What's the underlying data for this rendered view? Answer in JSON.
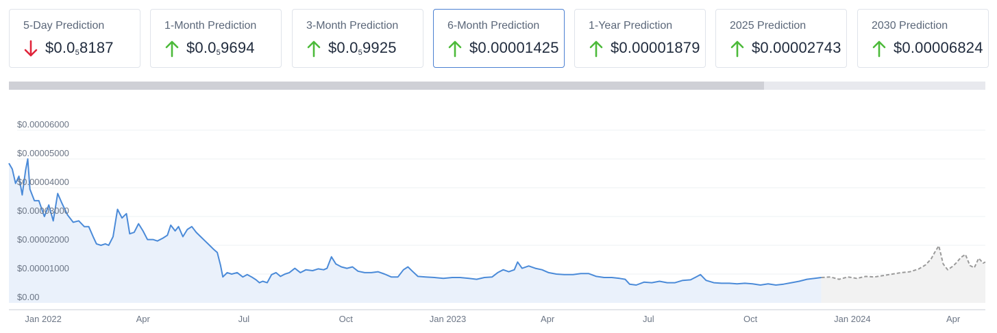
{
  "cards": [
    {
      "label": "5-Day Prediction",
      "prefix": "$0.0",
      "sub": "5",
      "suffix": "8187",
      "direction": "down"
    },
    {
      "label": "1-Month Prediction",
      "prefix": "$0.0",
      "sub": "5",
      "suffix": "9694",
      "direction": "up"
    },
    {
      "label": "3-Month Prediction",
      "prefix": "$0.0",
      "sub": "5",
      "suffix": "9925",
      "direction": "up"
    },
    {
      "label": "6-Month Prediction",
      "prefix": "$0.00001425",
      "sub": "",
      "suffix": "",
      "direction": "up",
      "active": true
    },
    {
      "label": "1-Year Prediction",
      "prefix": "$0.00001879",
      "sub": "",
      "suffix": "",
      "direction": "up"
    },
    {
      "label": "2025 Prediction",
      "prefix": "$0.00002743",
      "sub": "",
      "suffix": "",
      "direction": "up"
    },
    {
      "label": "2030 Prediction",
      "prefix": "$0.00006824",
      "sub": "",
      "suffix": "",
      "direction": "up"
    }
  ],
  "colors": {
    "up": "#4cba3a",
    "down": "#e0243a",
    "history_line": "#4a8ad8",
    "history_fill": "#eaf1fb",
    "prediction_line": "#9a9a9a",
    "prediction_fill": "#f2f2f2",
    "grid": "#eef0f3"
  },
  "scrollbar": {
    "thumb_fraction": 0.773
  },
  "chart_data": {
    "type": "area",
    "grid": true,
    "ylim": [
      0,
      6e-05
    ],
    "y_ticks": [
      0,
      1e-05,
      2e-05,
      3e-05,
      4e-05,
      5e-05,
      6e-05
    ],
    "y_tick_labels": [
      "$0.00",
      "$0.00001000",
      "$0.00002000",
      "$0.00003000",
      "$0.00004000",
      "$0.00005000",
      "$0.00006000"
    ],
    "xlim": [
      "2021-12-01",
      "2024-04-30"
    ],
    "x_ticks": [
      "2022-01-01",
      "2022-04-01",
      "2022-07-01",
      "2022-10-01",
      "2023-01-01",
      "2023-04-01",
      "2023-07-01",
      "2023-10-01",
      "2024-01-01",
      "2024-04-01"
    ],
    "x_tick_labels": [
      "Jan 2022",
      "Apr",
      "Jul",
      "Oct",
      "Jan 2023",
      "Apr",
      "Jul",
      "Oct",
      "Jan 2024",
      "Apr"
    ],
    "series": [
      {
        "style": "solid",
        "points": [
          [
            "2021-12-01",
            4.85e-05
          ],
          [
            "2021-12-04",
            4.65e-05
          ],
          [
            "2021-12-07",
            4.15e-05
          ],
          [
            "2021-12-10",
            4.4e-05
          ],
          [
            "2021-12-13",
            3.75e-05
          ],
          [
            "2021-12-16",
            4.6e-05
          ],
          [
            "2021-12-18",
            5e-05
          ],
          [
            "2021-12-20",
            3.95e-05
          ],
          [
            "2021-12-24",
            3.55e-05
          ],
          [
            "2021-12-28",
            3.55e-05
          ],
          [
            "2022-01-02",
            3e-05
          ],
          [
            "2022-01-06",
            3.4e-05
          ],
          [
            "2022-01-10",
            2.85e-05
          ],
          [
            "2022-01-14",
            3.8e-05
          ],
          [
            "2022-01-18",
            3.45e-05
          ],
          [
            "2022-01-23",
            3.05e-05
          ],
          [
            "2022-01-28",
            2.8e-05
          ],
          [
            "2022-02-02",
            2.85e-05
          ],
          [
            "2022-02-07",
            2.65e-05
          ],
          [
            "2022-02-11",
            2.65e-05
          ],
          [
            "2022-02-15",
            2.3e-05
          ],
          [
            "2022-02-18",
            2.05e-05
          ],
          [
            "2022-02-22",
            2e-05
          ],
          [
            "2022-02-26",
            2.05e-05
          ],
          [
            "2022-03-01",
            2e-05
          ],
          [
            "2022-03-05",
            2.3e-05
          ],
          [
            "2022-03-09",
            3.25e-05
          ],
          [
            "2022-03-13",
            2.95e-05
          ],
          [
            "2022-03-17",
            3.1e-05
          ],
          [
            "2022-03-20",
            2.4e-05
          ],
          [
            "2022-03-24",
            2.45e-05
          ],
          [
            "2022-03-28",
            2.75e-05
          ],
          [
            "2022-04-01",
            2.5e-05
          ],
          [
            "2022-04-05",
            2.2e-05
          ],
          [
            "2022-04-10",
            2.2e-05
          ],
          [
            "2022-04-14",
            2.15e-05
          ],
          [
            "2022-04-19",
            2.25e-05
          ],
          [
            "2022-04-23",
            2.35e-05
          ],
          [
            "2022-04-26",
            2.7e-05
          ],
          [
            "2022-04-30",
            2.5e-05
          ],
          [
            "2022-05-03",
            2.65e-05
          ],
          [
            "2022-05-07",
            2.3e-05
          ],
          [
            "2022-05-11",
            2.55e-05
          ],
          [
            "2022-05-15",
            2.65e-05
          ],
          [
            "2022-05-19",
            2.45e-05
          ],
          [
            "2022-05-23",
            2.3e-05
          ],
          [
            "2022-05-27",
            2.15e-05
          ],
          [
            "2022-05-31",
            2e-05
          ],
          [
            "2022-06-04",
            1.85e-05
          ],
          [
            "2022-06-07",
            1.75e-05
          ],
          [
            "2022-06-10",
            1.3e-05
          ],
          [
            "2022-06-12",
            9e-06
          ],
          [
            "2022-06-16",
            1.05e-05
          ],
          [
            "2022-06-20",
            1e-05
          ],
          [
            "2022-06-25",
            1.05e-05
          ],
          [
            "2022-06-30",
            9e-06
          ],
          [
            "2022-07-04",
            9.8e-06
          ],
          [
            "2022-07-08",
            9e-06
          ],
          [
            "2022-07-12",
            8e-06
          ],
          [
            "2022-07-15",
            7e-06
          ],
          [
            "2022-07-18",
            7.5e-06
          ],
          [
            "2022-07-22",
            7e-06
          ],
          [
            "2022-07-26",
            9.8e-06
          ],
          [
            "2022-07-30",
            1.05e-05
          ],
          [
            "2022-08-03",
            9.2e-06
          ],
          [
            "2022-08-07",
            1e-05
          ],
          [
            "2022-08-11",
            1.05e-05
          ],
          [
            "2022-08-16",
            1.2e-05
          ],
          [
            "2022-08-21",
            1.05e-05
          ],
          [
            "2022-08-26",
            1.15e-05
          ],
          [
            "2022-09-01",
            1.12e-05
          ],
          [
            "2022-09-06",
            1.18e-05
          ],
          [
            "2022-09-11",
            1.15e-05
          ],
          [
            "2022-09-14",
            1.2e-05
          ],
          [
            "2022-09-18",
            1.6e-05
          ],
          [
            "2022-09-22",
            1.35e-05
          ],
          [
            "2022-09-27",
            1.25e-05
          ],
          [
            "2022-10-02",
            1.2e-05
          ],
          [
            "2022-10-07",
            1.25e-05
          ],
          [
            "2022-10-12",
            1.1e-05
          ],
          [
            "2022-10-18",
            1.05e-05
          ],
          [
            "2022-10-24",
            1.05e-05
          ],
          [
            "2022-10-30",
            1.08e-05
          ],
          [
            "2022-11-05",
            1e-05
          ],
          [
            "2022-11-11",
            9e-06
          ],
          [
            "2022-11-17",
            9e-06
          ],
          [
            "2022-11-22",
            1.15e-05
          ],
          [
            "2022-11-26",
            1.25e-05
          ],
          [
            "2022-11-30",
            1.1e-05
          ],
          [
            "2022-12-05",
            9.2e-06
          ],
          [
            "2022-12-12",
            9e-06
          ],
          [
            "2022-12-20",
            8.8e-06
          ],
          [
            "2022-12-28",
            8.5e-06
          ],
          [
            "2023-01-05",
            8.8e-06
          ],
          [
            "2023-01-12",
            8.8e-06
          ],
          [
            "2023-01-20",
            8.5e-06
          ],
          [
            "2023-01-27",
            8.2e-06
          ],
          [
            "2023-02-03",
            8.8e-06
          ],
          [
            "2023-02-10",
            9e-06
          ],
          [
            "2023-02-15",
            1.05e-05
          ],
          [
            "2023-02-20",
            1.15e-05
          ],
          [
            "2023-02-25",
            1.08e-05
          ],
          [
            "2023-03-02",
            1.15e-05
          ],
          [
            "2023-03-05",
            1.42e-05
          ],
          [
            "2023-03-09",
            1.2e-05
          ],
          [
            "2023-03-15",
            1.28e-05
          ],
          [
            "2023-03-21",
            1.2e-05
          ],
          [
            "2023-03-27",
            1.15e-05
          ],
          [
            "2023-04-02",
            1.05e-05
          ],
          [
            "2023-04-09",
            1e-05
          ],
          [
            "2023-04-16",
            9.8e-06
          ],
          [
            "2023-04-24",
            9.8e-06
          ],
          [
            "2023-05-01",
            1.02e-05
          ],
          [
            "2023-05-08",
            1.02e-05
          ],
          [
            "2023-05-15",
            9.2e-06
          ],
          [
            "2023-05-22",
            8.8e-06
          ],
          [
            "2023-05-29",
            8.8e-06
          ],
          [
            "2023-06-05",
            8.5e-06
          ],
          [
            "2023-06-10",
            8.2e-06
          ],
          [
            "2023-06-14",
            6.5e-06
          ],
          [
            "2023-06-20",
            6.2e-06
          ],
          [
            "2023-06-27",
            7.2e-06
          ],
          [
            "2023-07-04",
            7e-06
          ],
          [
            "2023-07-11",
            7.5e-06
          ],
          [
            "2023-07-18",
            7e-06
          ],
          [
            "2023-07-25",
            7e-06
          ],
          [
            "2023-08-01",
            7.8e-06
          ],
          [
            "2023-08-08",
            8e-06
          ],
          [
            "2023-08-13",
            9e-06
          ],
          [
            "2023-08-17",
            9.8e-06
          ],
          [
            "2023-08-22",
            7.8e-06
          ],
          [
            "2023-08-29",
            7e-06
          ],
          [
            "2023-09-05",
            6.8e-06
          ],
          [
            "2023-09-12",
            6.8e-06
          ],
          [
            "2023-09-19",
            6.6e-06
          ],
          [
            "2023-09-26",
            6.8e-06
          ],
          [
            "2023-10-03",
            6.6e-06
          ],
          [
            "2023-10-10",
            6.2e-06
          ],
          [
            "2023-10-17",
            6.6e-06
          ],
          [
            "2023-10-24",
            6.2e-06
          ],
          [
            "2023-10-31",
            6.5e-06
          ],
          [
            "2023-11-07",
            7e-06
          ],
          [
            "2023-11-14",
            7.5e-06
          ],
          [
            "2023-11-21",
            8.2e-06
          ],
          [
            "2023-11-28",
            8.5e-06
          ],
          [
            "2023-12-04",
            8.8e-06
          ]
        ]
      },
      {
        "style": "dashed",
        "points": [
          [
            "2023-12-04",
            8.8e-06
          ],
          [
            "2023-12-12",
            9e-06
          ],
          [
            "2023-12-20",
            8.2e-06
          ],
          [
            "2023-12-28",
            9e-06
          ],
          [
            "2024-01-05",
            8.5e-06
          ],
          [
            "2024-01-13",
            9.2e-06
          ],
          [
            "2024-01-21",
            9e-06
          ],
          [
            "2024-01-29",
            9.5e-06
          ],
          [
            "2024-02-06",
            1e-05
          ],
          [
            "2024-02-14",
            1.05e-05
          ],
          [
            "2024-02-22",
            1.08e-05
          ],
          [
            "2024-03-01",
            1.18e-05
          ],
          [
            "2024-03-07",
            1.32e-05
          ],
          [
            "2024-03-12",
            1.52e-05
          ],
          [
            "2024-03-16",
            1.8e-05
          ],
          [
            "2024-03-19",
            1.98e-05
          ],
          [
            "2024-03-23",
            1.35e-05
          ],
          [
            "2024-03-27",
            1.15e-05
          ],
          [
            "2024-04-01",
            1.28e-05
          ],
          [
            "2024-04-04",
            1.4e-05
          ],
          [
            "2024-04-08",
            1.58e-05
          ],
          [
            "2024-04-12",
            1.68e-05
          ],
          [
            "2024-04-16",
            1.3e-05
          ],
          [
            "2024-04-20",
            1.22e-05
          ],
          [
            "2024-04-24",
            1.55e-05
          ],
          [
            "2024-04-28",
            1.38e-05
          ],
          [
            "2024-04-30",
            1.42e-05
          ]
        ]
      }
    ]
  }
}
